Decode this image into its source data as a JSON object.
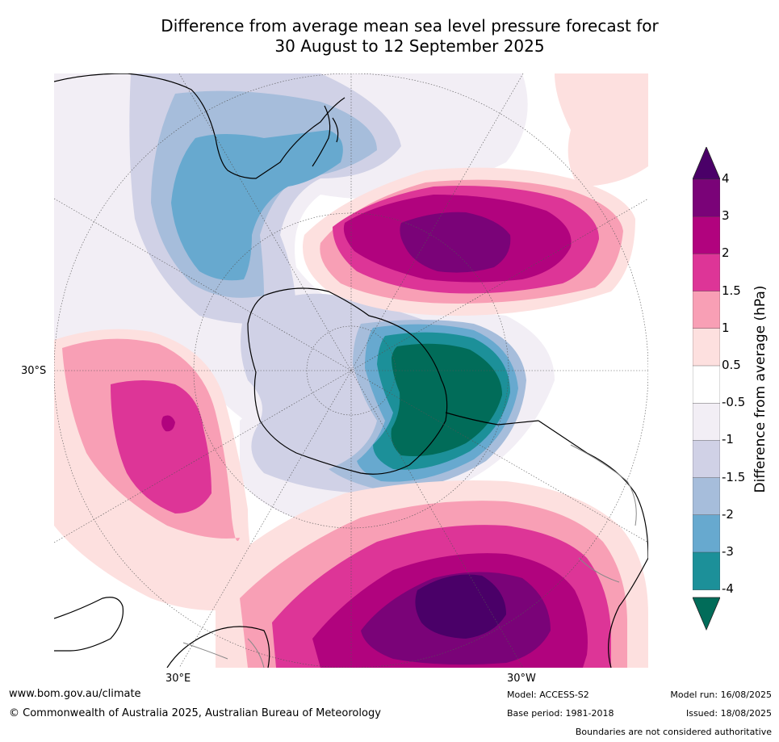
{
  "title": {
    "line1": "Difference from average mean sea level pressure forecast for",
    "line2": "30 August to 12 September 2025"
  },
  "map": {
    "lat_label": "30°S",
    "lon_labels": [
      "30°E",
      "30°W"
    ]
  },
  "colorbar": {
    "label": "Difference from average (hPa)",
    "ticks": [
      "4",
      "3",
      "2",
      "1.5",
      "1",
      "0.5",
      "-0.5",
      "-1",
      "-1.5",
      "-2",
      "-3",
      "-4"
    ],
    "colors": {
      "gt4": "#4a0068",
      "3_4": "#7a0378",
      "2_3": "#b1037e",
      "1.5_2": "#dd3597",
      "1_1.5": "#f89fb5",
      "0.5_1": "#fde0df",
      "-0.5_0.5": "#ffffff",
      "-1_-0.5": "#f2eef5",
      "-1.5_-1": "#d0d1e6",
      "-2_-1.5": "#a6bddb",
      "-3_-2": "#67a9cf",
      "-4_-3": "#1c9099",
      "lt-4": "#016c59"
    }
  },
  "footer": {
    "url": "www.bom.gov.au/climate",
    "copyright": "© Commonwealth of Australia 2025, Australian Bureau of Meteorology",
    "model": "Model: ACCESS-S2",
    "base_period": "Base period: 1981-2018",
    "model_run": "Model run: 16/08/2025",
    "issued": "Issued: 18/08/2025",
    "disclaimer": "Boundaries are not considered authoritative"
  }
}
